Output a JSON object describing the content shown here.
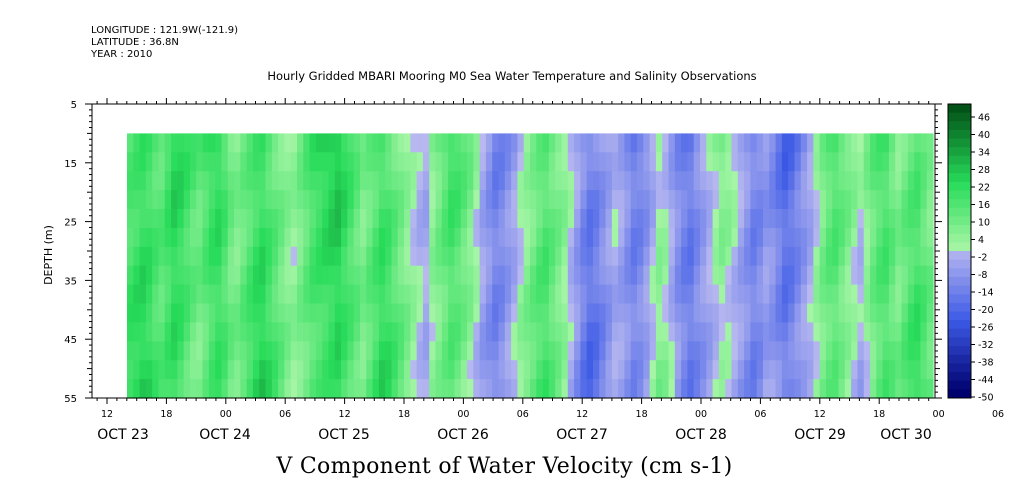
{
  "header": {
    "longitude": "LONGITUDE : 121.9W(-121.9)",
    "latitude": "LATITUDE : 36.8N",
    "year": "YEAR : 2010"
  },
  "chart_data": {
    "type": "heatmap",
    "title": "Hourly Gridded MBARI Mooring M0 Sea Water Temperature and Salinity Observations",
    "xlabel": "V Component of Water Velocity (cm s-1)",
    "ylabel": "DEPTH (m)",
    "ylim": [
      5,
      55
    ],
    "y_inverted": true,
    "y_ticks": [
      5,
      15,
      25,
      35,
      45,
      55
    ],
    "data_depth_range": [
      10,
      55
    ],
    "x_start_hour_label": "12",
    "x_hour_ticks": [
      "12",
      "18",
      "00",
      "06",
      "12",
      "18",
      "00",
      "06",
      "12",
      "18",
      "00",
      "06",
      "12",
      "18",
      "00",
      "06",
      "12",
      "18",
      "00",
      "06",
      "12",
      "18",
      "00",
      "06",
      "12",
      "18",
      "00",
      "06",
      "12",
      "18",
      "00",
      "06"
    ],
    "x_date_labels": [
      "OCT 23",
      "OCT 24",
      "OCT 25",
      "OCT 26",
      "OCT 27",
      "OCT 28",
      "OCT 29",
      "OCT 30"
    ],
    "data_start": "OCT 23 18:00",
    "data_end": "OCT 30 10:00",
    "colorbar": {
      "labels": [
        "46",
        "40",
        "34",
        "28",
        "22",
        "16",
        "10",
        "4",
        "-2",
        "-8",
        "-14",
        "-20",
        "-26",
        "-32",
        "-38",
        "-44",
        "-50"
      ],
      "range": [
        -50,
        50
      ],
      "step": 3
    },
    "column_values_at_mid_depth": [
      18,
      20,
      22,
      20,
      16,
      14,
      18,
      22,
      20,
      16,
      12,
      10,
      14,
      18,
      20,
      16,
      10,
      8,
      12,
      16,
      20,
      22,
      18,
      14,
      10,
      6,
      4,
      8,
      12,
      16,
      18,
      20,
      22,
      24,
      20,
      16,
      12,
      8,
      12,
      16,
      20,
      18,
      14,
      10,
      6,
      2,
      -2,
      -4,
      4,
      8,
      12,
      16,
      14,
      10,
      6,
      0,
      -6,
      -10,
      -14,
      -12,
      -8,
      -4,
      2,
      6,
      10,
      14,
      16,
      12,
      8,
      4,
      -2,
      -8,
      -14,
      -18,
      -16,
      -12,
      -8,
      -4,
      -6,
      -10,
      -14,
      -12,
      -8,
      -2,
      4,
      2,
      -4,
      -10,
      -14,
      -16,
      -12,
      -8,
      -4,
      0,
      4,
      2,
      -2,
      -6,
      -10,
      -14,
      -12,
      -8,
      -10,
      -14,
      -18,
      -16,
      -12,
      -8,
      -4,
      2,
      8,
      12,
      14,
      10,
      6,
      2,
      -2,
      4,
      10,
      14,
      16,
      12,
      8,
      12,
      16,
      18,
      14,
      10
    ]
  }
}
